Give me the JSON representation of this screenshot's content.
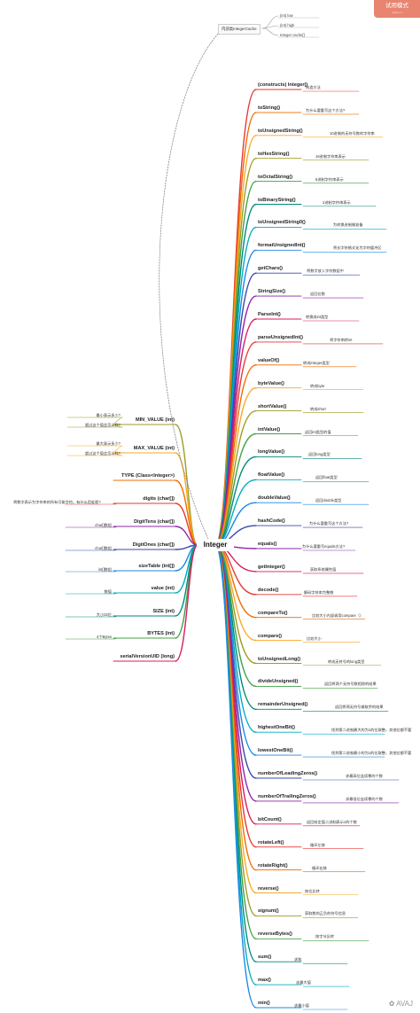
{
  "badge": {
    "title": "试用模式",
    "sub": "pfunc.cn"
  },
  "root": "Integer",
  "cache": {
    "label": "内部类IntegerCache",
    "items": [
      "(int) low",
      "(int) high",
      "Integer cache[]"
    ]
  },
  "right_branches": [
    {
      "name": "(constructs)    Integer()",
      "desc": "构造方法",
      "color": "#e53935"
    },
    {
      "name": "toString()",
      "desc": "为什么要重写这个方法?",
      "color": "#ef6c00"
    },
    {
      "name": "toUnsignedString()",
      "desc": "10进制的无符号数的字符串",
      "color": "#f9a825"
    },
    {
      "name": "toHexString()",
      "desc": "16进制字符串表示",
      "color": "#9e9d24"
    },
    {
      "name": "toOctalString()",
      "desc": "8进制字符串表示",
      "color": "#43a047"
    },
    {
      "name": "toBinaryString()",
      "desc": "2进制字符串表示",
      "color": "#00897b"
    },
    {
      "name": "toUnsignedString0()",
      "desc": "为转换进制做准备",
      "color": "#00acc1"
    },
    {
      "name": "formatUnsignedInt()",
      "desc": "将长字符格式化为字符缓冲区",
      "color": "#1e88e5"
    },
    {
      "name": "getChars()",
      "desc": "将数字放入字符数组中",
      "color": "#3949ab"
    },
    {
      "name": "StringSize()",
      "desc": "返回位数",
      "color": "#8e24aa"
    },
    {
      "name": "ParseInt()",
      "desc": "转换成int类型",
      "color": "#d81b60"
    },
    {
      "name": "parseUnsignedInt()",
      "desc": "将字符串转int",
      "color": "#e53935"
    },
    {
      "name": "valueOf()",
      "desc": "转成Integer类型",
      "color": "#ef6c00"
    },
    {
      "name": "byteValue()",
      "desc": "转成byte",
      "color": "#f9a825"
    },
    {
      "name": "shortValue()",
      "desc": "转成short",
      "color": "#9e9d24"
    },
    {
      "name": "intValue()",
      "desc": "返回int类型的值",
      "color": "#43a047"
    },
    {
      "name": "longValue()",
      "desc": "返回long类型",
      "color": "#00897b"
    },
    {
      "name": "floatValue()",
      "desc": "返回float类型",
      "color": "#00acc1"
    },
    {
      "name": "doubleValue()",
      "desc": "返回double类型",
      "color": "#1e88e5"
    },
    {
      "name": "hashCode()",
      "desc": "为什么要重写这个方法?",
      "color": "#3949ab"
    },
    {
      "name": "equals()",
      "desc": "为什么要重写equals方法?",
      "color": "#8e24aa"
    },
    {
      "name": "getInteger()",
      "desc": "获取系统属性值",
      "color": "#d81b60"
    },
    {
      "name": "decode()",
      "desc": "解码字符串为整数",
      "color": "#e53935"
    },
    {
      "name": "compareTo()",
      "desc": "比较大小内部调用compare（）",
      "color": "#ef6c00"
    },
    {
      "name": "compare()",
      "desc": "比较大小",
      "color": "#f9a825"
    },
    {
      "name": "toUnsignedLong()",
      "desc": "转成无符号的long类型",
      "color": "#9e9d24"
    },
    {
      "name": "divideUnsigned()",
      "desc": "返回将两个无符号数相除的结果",
      "color": "#43a047"
    },
    {
      "name": "remainderUnsigned()",
      "desc": "返回将两无符号做取余的结果",
      "color": "#00897b"
    },
    {
      "name": "highestOneBit()",
      "desc": "找到第二进制最大的为1的位取整，其他位都不要",
      "color": "#00acc1"
    },
    {
      "name": "lowestOneBit()",
      "desc": "找到第二进制最小的为1的位取整，其他位都不要",
      "color": "#1e88e5"
    },
    {
      "name": "numberOfLeadingZeros()",
      "desc": "求最高位连续零的个数",
      "color": "#3949ab"
    },
    {
      "name": "numberOfTrailingZeros()",
      "desc": "求最低位连续零的个数",
      "color": "#8e24aa"
    },
    {
      "name": "bitCount()",
      "desc": "返回给定值二进制表示1的个数",
      "color": "#d81b60"
    },
    {
      "name": "rotateLeft()",
      "desc": "循环左移",
      "color": "#e53935"
    },
    {
      "name": "rotateRight()",
      "desc": "循环右移",
      "color": "#ef6c00"
    },
    {
      "name": "reverse()",
      "desc": "按位反转",
      "color": "#f9a825"
    },
    {
      "name": "signum()",
      "desc": "获取数的正负的符号信息",
      "color": "#9e9d24"
    },
    {
      "name": "reverseBytes()",
      "desc": "按字节反转",
      "color": "#43a047"
    },
    {
      "name": "sum()",
      "desc": "求和",
      "color": "#00897b"
    },
    {
      "name": "max()",
      "desc": "求最大值",
      "color": "#00acc1"
    },
    {
      "name": "min()",
      "desc": "求最小值",
      "color": "#1e88e5"
    }
  ],
  "left_branches": [
    {
      "name": "MIN_VALUE (int)",
      "descs": [
        "最小表示多少?",
        "超过这个值会怎么样?"
      ],
      "color": "#9e9d24"
    },
    {
      "name": "MAX_VALUE (int)",
      "descs": [
        "最大表示多少?",
        "超过这个值会怎么样?"
      ],
      "color": "#f9a825"
    },
    {
      "name": "TYPE (Class<Integer>)",
      "descs": [],
      "color": "#ef6c00"
    },
    {
      "name": "digits (char[])",
      "descs": [
        "将数字表示为字符串的所有可能字符，有什么用处呢?"
      ],
      "color": "#e53935"
    },
    {
      "name": "DigitTens (char[])",
      "descs": [
        "char[]数组"
      ],
      "color": "#8e24aa"
    },
    {
      "name": "DigitOnes (char[])",
      "descs": [
        "char[]数组"
      ],
      "color": "#3949ab"
    },
    {
      "name": "sizeTable (int[])",
      "descs": [
        "int[]数组"
      ],
      "color": "#1e88e5"
    },
    {
      "name": "value (int)",
      "descs": [
        "数值"
      ],
      "color": "#00acc1"
    },
    {
      "name": "SIZE (int)",
      "descs": [
        "大小32位"
      ],
      "color": "#00897b"
    },
    {
      "name": "BYTES (int)",
      "descs": [
        "4个Bytes"
      ],
      "color": "#43a047"
    },
    {
      "name": "serialVersionUID (long)",
      "descs": [],
      "color": "#d81b60"
    }
  ],
  "watermark": "AVAJ"
}
